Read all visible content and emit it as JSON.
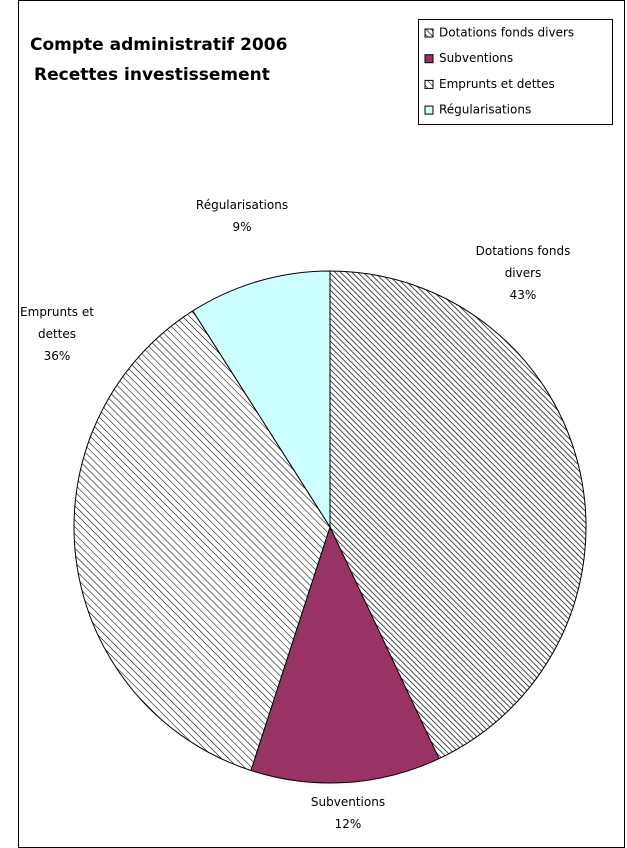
{
  "chart_data": {
    "type": "pie",
    "title": "Compte administratif 2006",
    "subtitle": "Recettes investissement",
    "categories": [
      "Dotations fonds divers",
      "Subventions",
      "Emprunts et dettes",
      "Régularisations"
    ],
    "values": [
      43,
      12,
      36,
      9
    ],
    "value_labels": [
      "43%",
      "12%",
      "36%",
      "9%"
    ],
    "colors": [
      "#ffffff",
      "#993366",
      "#ffffff",
      "#ccffff"
    ],
    "patterns": [
      "hatch-dense",
      "solid",
      "hatch",
      "solid"
    ],
    "legend": "top-right"
  }
}
